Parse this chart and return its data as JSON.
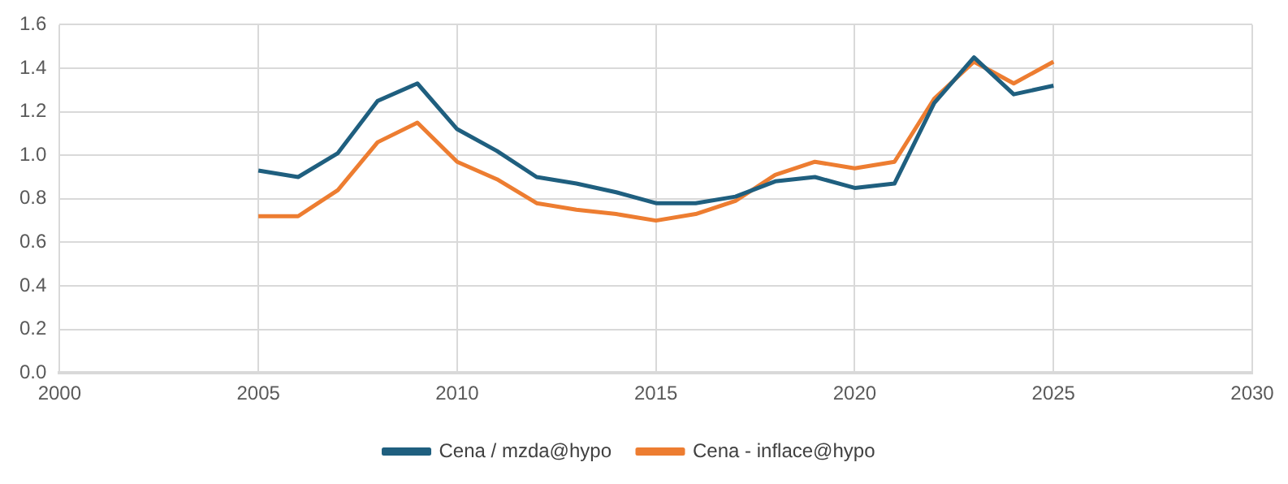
{
  "chart_data": {
    "type": "line",
    "x": [
      2005,
      2006,
      2007,
      2008,
      2009,
      2010,
      2011,
      2012,
      2013,
      2014,
      2015,
      2016,
      2017,
      2018,
      2019,
      2020,
      2021,
      2022,
      2023,
      2024,
      2025
    ],
    "series": [
      {
        "name": "Cena / mzda@hypo",
        "color": "#1f5f7f",
        "values": [
          0.93,
          0.9,
          1.01,
          1.25,
          1.33,
          1.12,
          1.02,
          0.9,
          0.87,
          0.83,
          0.78,
          0.78,
          0.81,
          0.88,
          0.9,
          0.85,
          0.87,
          1.24,
          1.45,
          1.28,
          1.32
        ]
      },
      {
        "name": "Cena - inflace@hypo",
        "color": "#ed7d31",
        "values": [
          0.72,
          0.72,
          0.84,
          1.06,
          1.15,
          0.97,
          0.89,
          0.78,
          0.75,
          0.73,
          0.7,
          0.73,
          0.79,
          0.91,
          0.97,
          0.94,
          0.97,
          1.26,
          1.43,
          1.33,
          1.43
        ]
      }
    ],
    "xlim": [
      2000,
      2030
    ],
    "xticks": [
      2000,
      2005,
      2010,
      2015,
      2020,
      2025,
      2030
    ],
    "ylim": [
      0,
      1.6
    ],
    "yticks": [
      {
        "value": 0,
        "label": "0.0"
      },
      {
        "value": 0.2,
        "label": "0.2"
      },
      {
        "value": 0.4,
        "label": "0.4"
      },
      {
        "value": 0.6,
        "label": "0.6"
      },
      {
        "value": 0.8,
        "label": "0.8"
      },
      {
        "value": 1,
        "label": "1.0"
      },
      {
        "value": 1.2,
        "label": "1.2"
      },
      {
        "value": 1.4,
        "label": "1.4"
      },
      {
        "value": 1.6,
        "label": "1.6"
      }
    ],
    "grid": true,
    "legend": "bottom",
    "marker": "none",
    "line_style": "solid"
  }
}
